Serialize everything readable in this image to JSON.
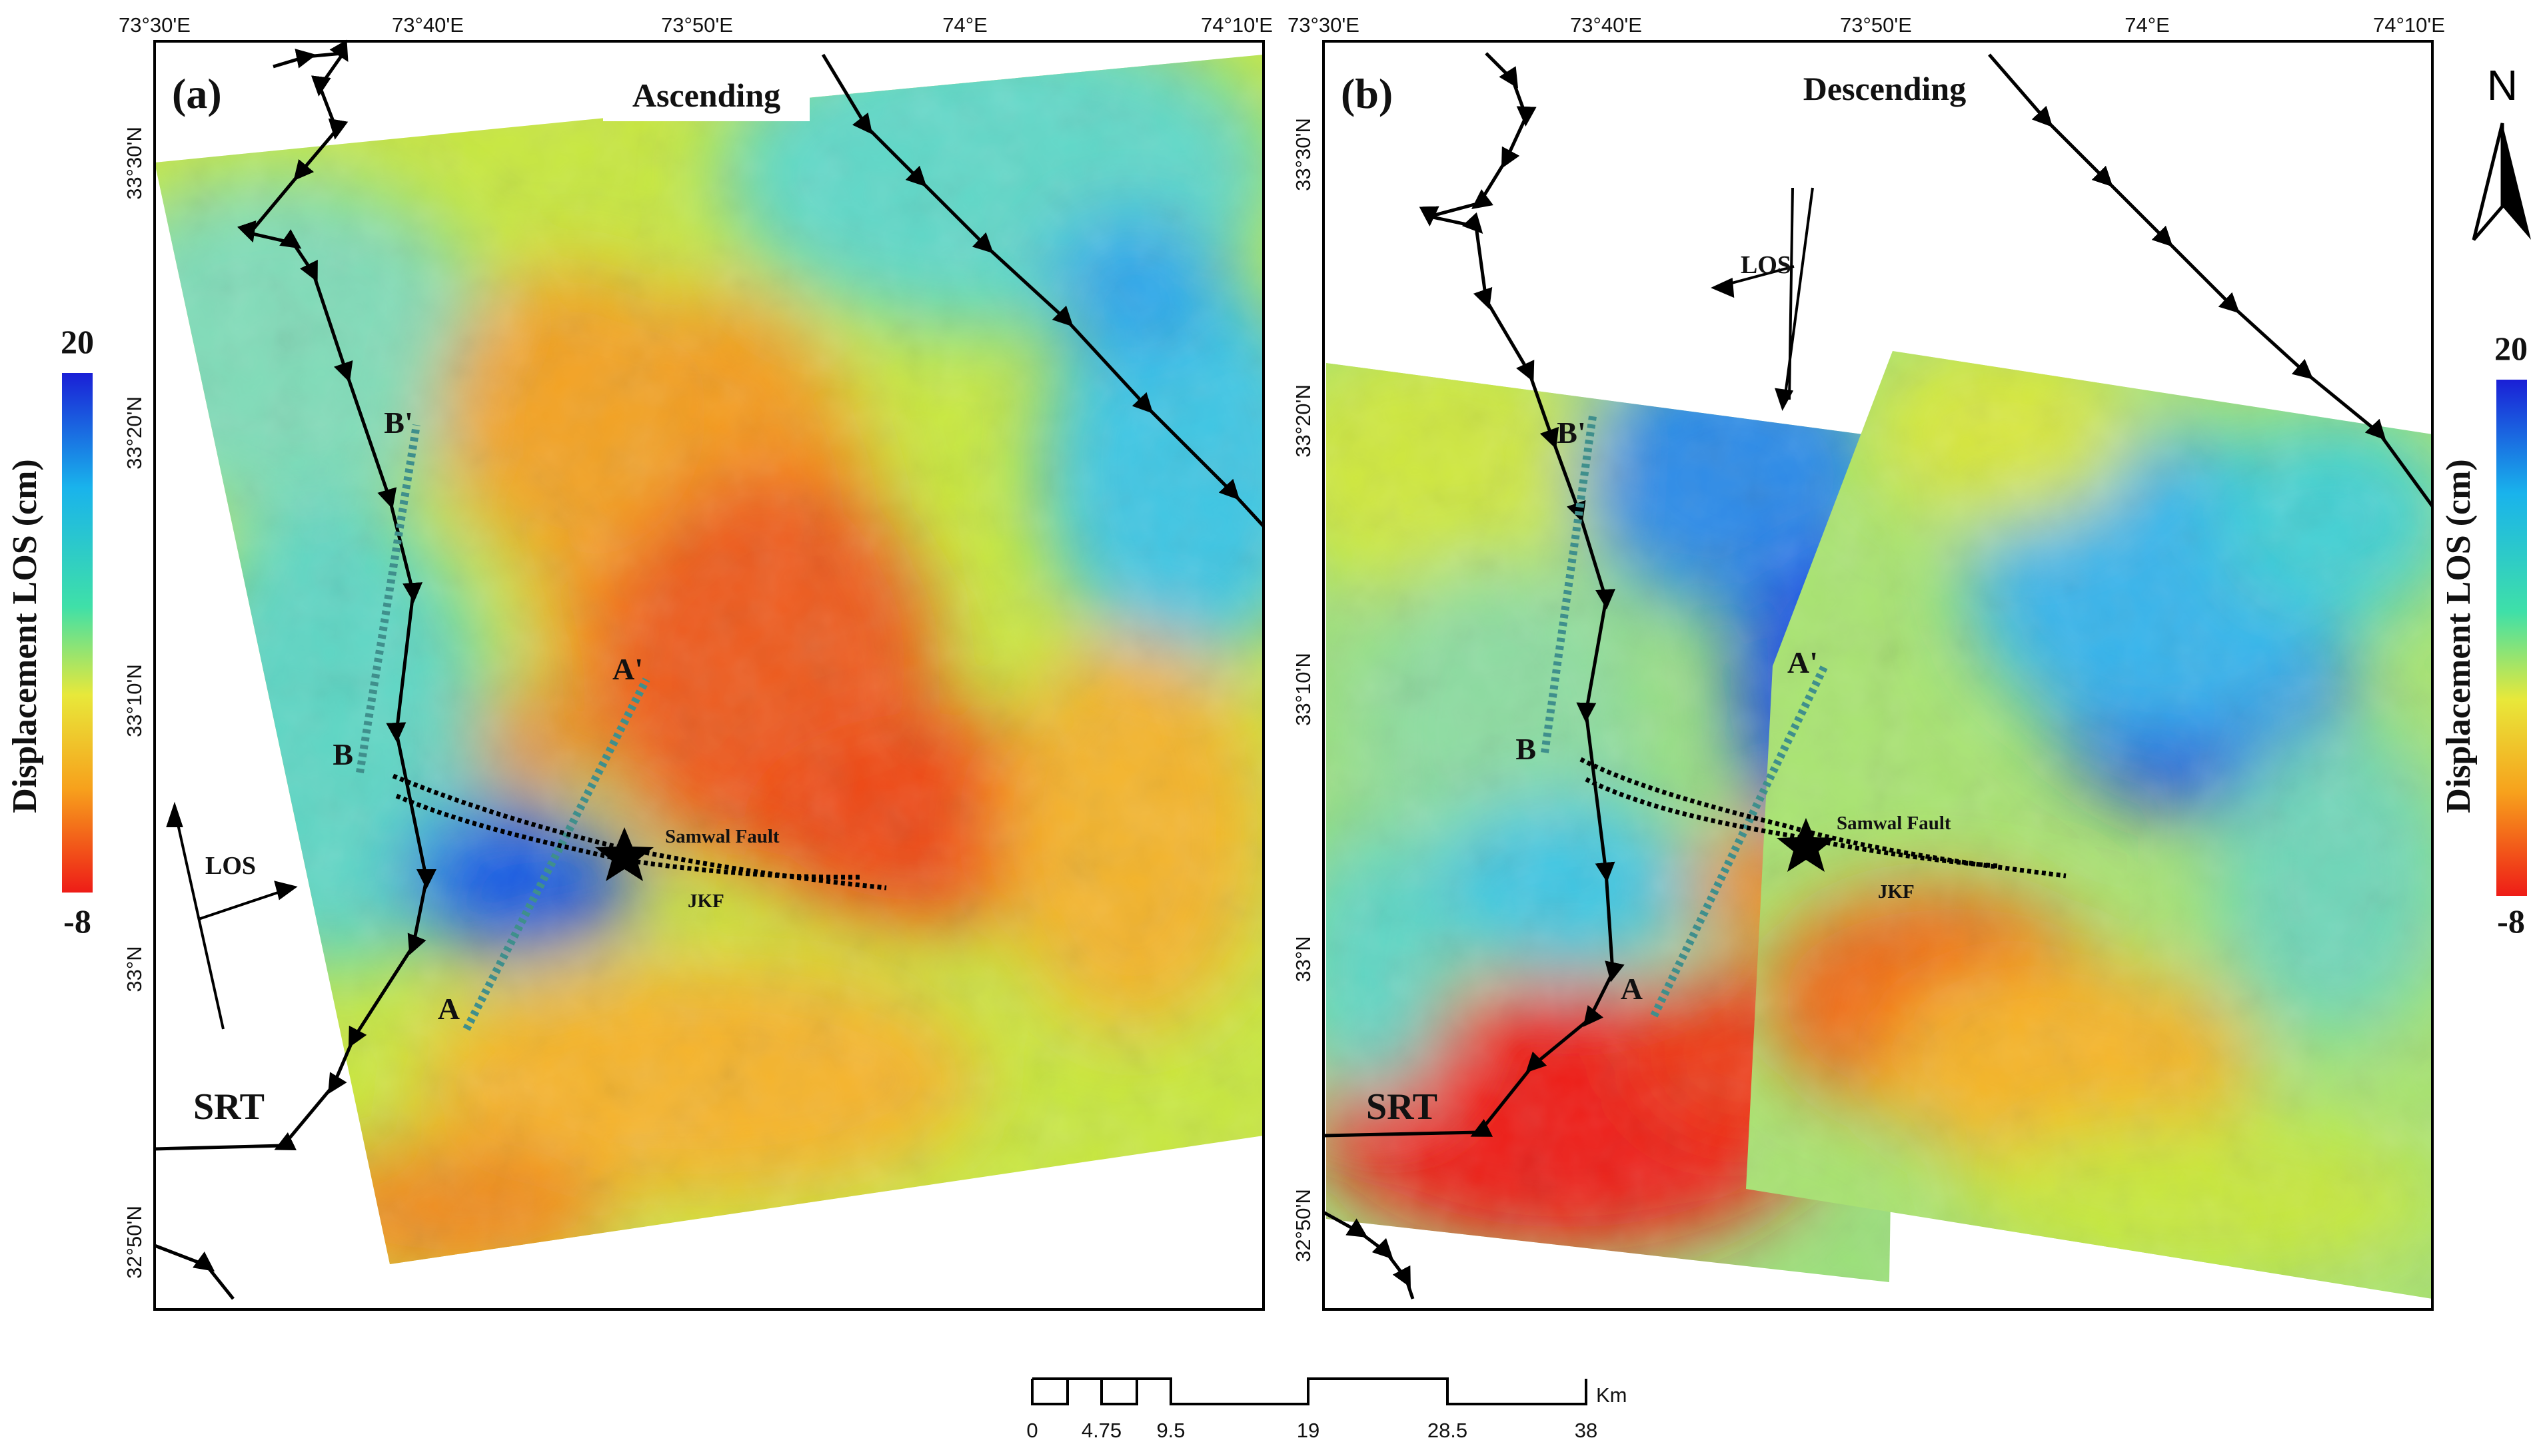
{
  "panel_a": {
    "letter": "(a)",
    "orbit": "Ascending",
    "los": "LOS",
    "profile_a": "A",
    "profile_a_prime": "A'",
    "profile_b": "B",
    "profile_b_prime": "B'",
    "fault_name": "Samwal Fault",
    "fault_abbrev": "JKF",
    "thrust": "SRT"
  },
  "panel_b": {
    "letter": "(b)",
    "orbit": "Descending",
    "los": "LOS",
    "profile_a": "A",
    "profile_a_prime": "A'",
    "profile_b": "B",
    "profile_b_prime": "B'",
    "fault_name": "Samwal Fault",
    "fault_abbrev": "JKF",
    "thrust": "SRT"
  },
  "lon_ticks": [
    "73°30'E",
    "73°40'E",
    "73°50'E",
    "74°E",
    "74°10'E"
  ],
  "lat_ticks": [
    "33°30'N",
    "33°20'N",
    "33°10'N",
    "33°N",
    "32°50'N"
  ],
  "colorbar": {
    "title": "Displacement LOS (cm)",
    "max": "20",
    "min": "-8",
    "colors": [
      "#1a1fd6",
      "#19b3ec",
      "#3fe0a8",
      "#e8e83a",
      "#f7a11c",
      "#ee1c17"
    ]
  },
  "north": {
    "label": "N"
  },
  "scale_bar": {
    "unit": "Km",
    "ticks": [
      "0",
      "4.75",
      "9.5",
      "19",
      "28.5",
      "38"
    ]
  }
}
